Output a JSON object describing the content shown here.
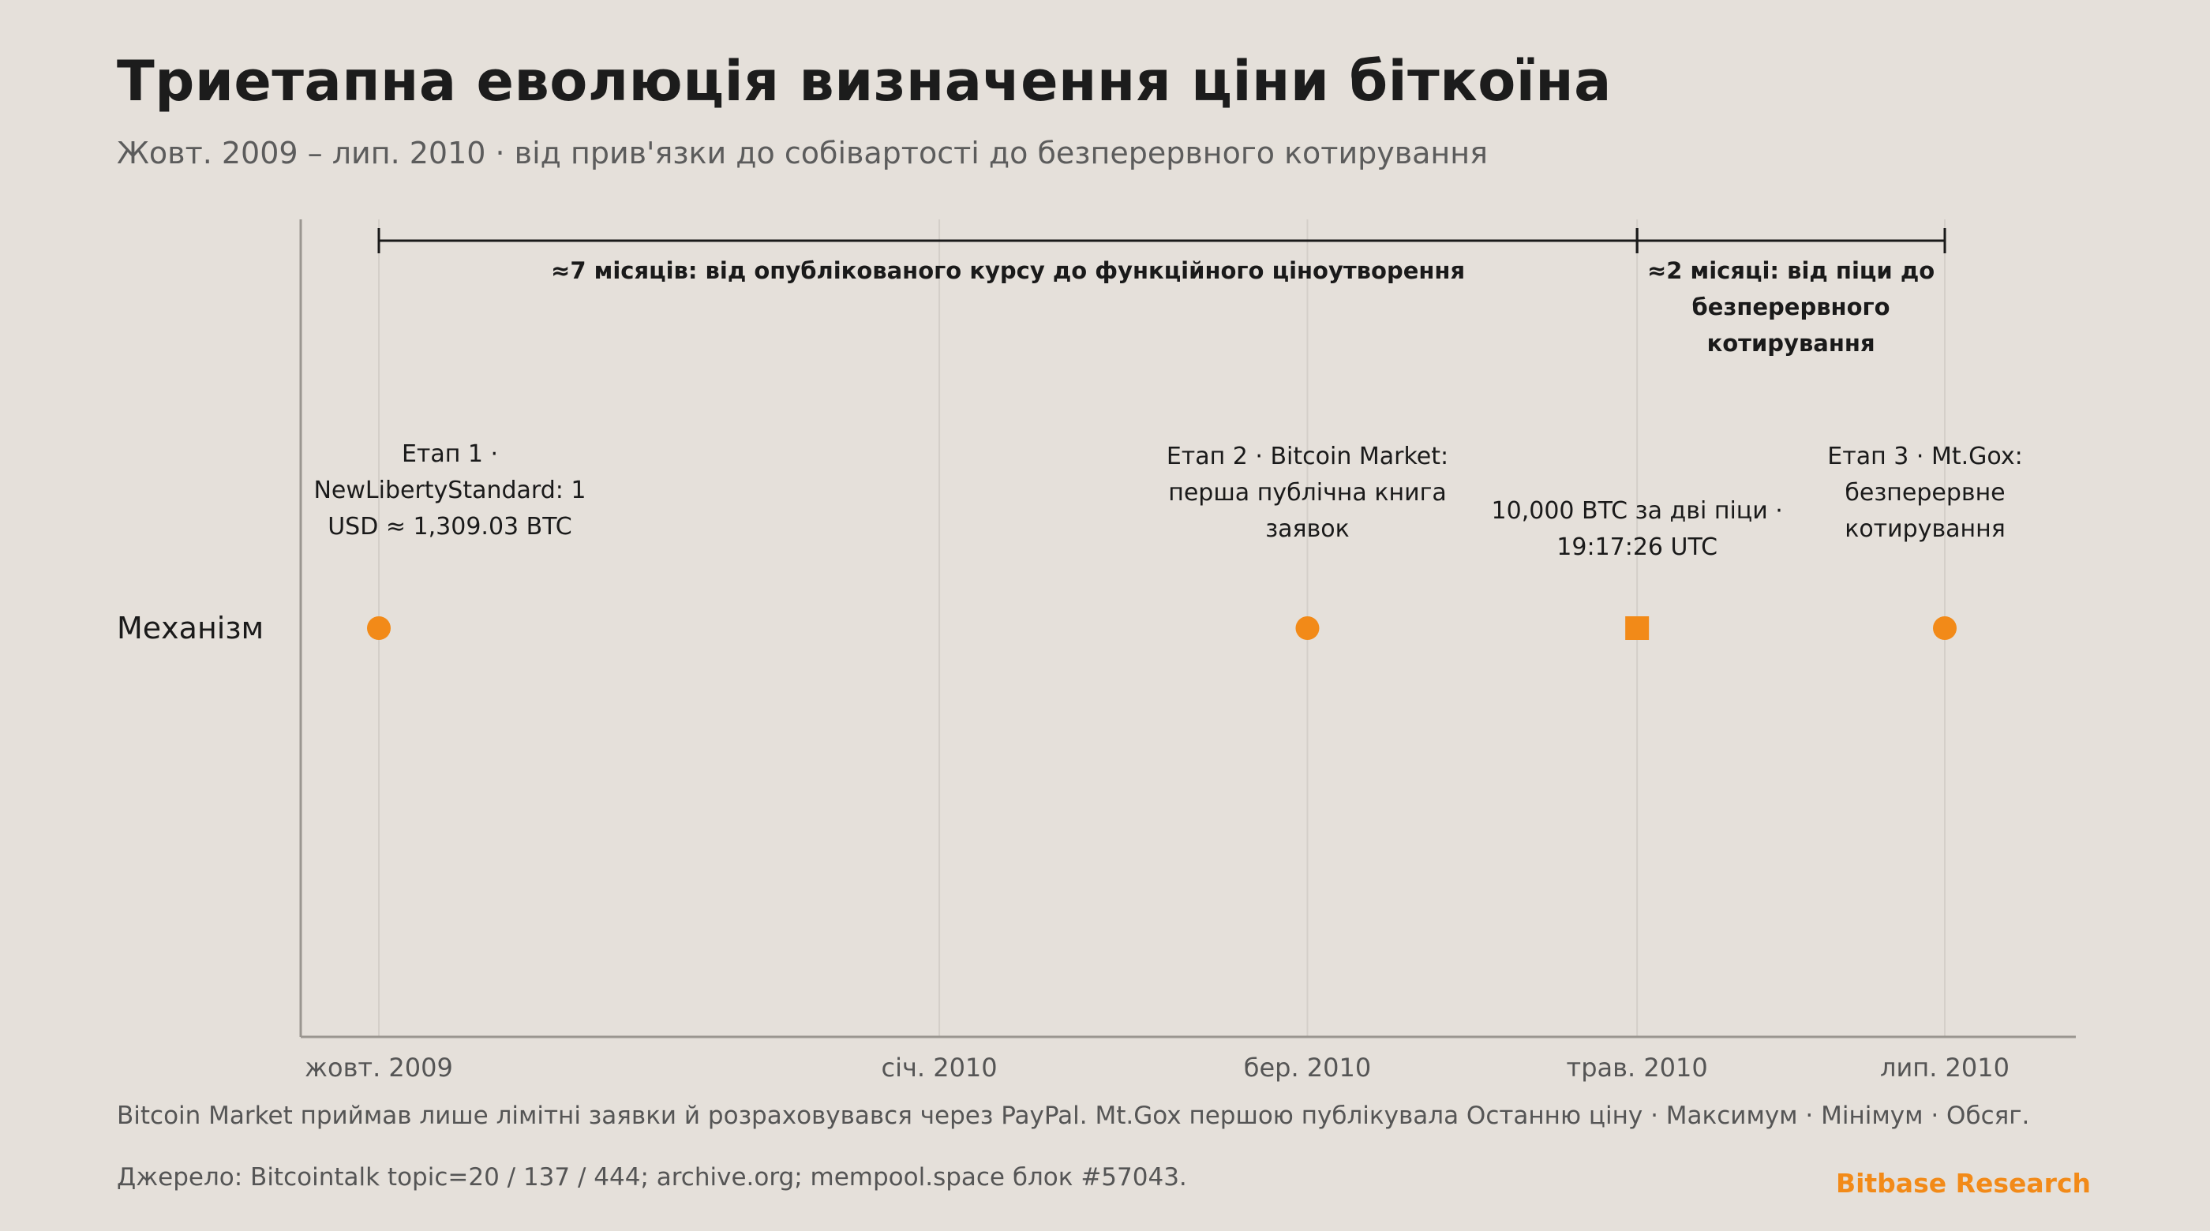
{
  "header": {
    "title": "Триетапна еволюція визначення ціни біткоїна",
    "subtitle": "Жовт. 2009 – лип. 2010 · від прив'язки до собівартості до безперервного котирування"
  },
  "chart_data": {
    "type": "scatter",
    "x_axis": {
      "type": "date",
      "range": [
        "2009-10-01",
        "2010-07-18"
      ],
      "ticks": [
        {
          "date": "2009-10-05",
          "label": "жовт. 2009"
        },
        {
          "date": "2010-01-15",
          "label": "січ. 2010"
        },
        {
          "date": "2010-03-23",
          "label": "бер. 2010"
        },
        {
          "date": "2010-05-22",
          "label": "трав. 2010"
        },
        {
          "date": "2010-07-17",
          "label": "лип. 2010"
        }
      ],
      "grid": true
    },
    "rows": [
      "Механізм"
    ],
    "events": [
      {
        "date": "2009-10-05",
        "row": "Механізм",
        "marker": "circle",
        "label_lines": [
          "Етап 1 ·",
          "NewLibertyStandard: 1",
          "USD ≈ 1,309.03 BTC"
        ]
      },
      {
        "date": "2010-03-23",
        "row": "Механізм",
        "marker": "circle",
        "label_lines": [
          "Етап 2 · Bitcoin Market:",
          "перша публічна книга",
          "заявок"
        ]
      },
      {
        "date": "2010-05-22",
        "row": "Механізм",
        "marker": "square",
        "label_lines": [
          "10,000 BTC за дві піци ·",
          "19:17:26 UTC"
        ]
      },
      {
        "date": "2010-07-17",
        "row": "Механізм",
        "marker": "circle",
        "label_lines": [
          "Етап 3 · Mt.Gox:",
          "безперервне",
          "котирування"
        ]
      }
    ],
    "spans": [
      {
        "start": "2009-10-05",
        "end": "2010-05-22",
        "label_lines": [
          "≈7 місяців: від опублікованого курсу до функційного ціноутворення"
        ]
      },
      {
        "start": "2010-05-22",
        "end": "2010-07-17",
        "label_lines": [
          "≈2 місяці: від піци до",
          "безперервного",
          "котирування"
        ]
      }
    ],
    "colors": {
      "marker": "#f28a18",
      "span": "#1a1a1a",
      "grid": "#d4cfc9",
      "axis": "#9a9690"
    }
  },
  "footer": {
    "note": "Bitcoin Market приймав лише лімітні заявки й розраховувався через PayPal. Mt.Gox першою публікувала Останню ціну · Максимум · Мінімум · Обсяг.",
    "source": "Джерело: Bitcointalk topic=20 / 137 / 444; archive.org; mempool.space блок #57043.",
    "brand": "Bitbase Research"
  }
}
